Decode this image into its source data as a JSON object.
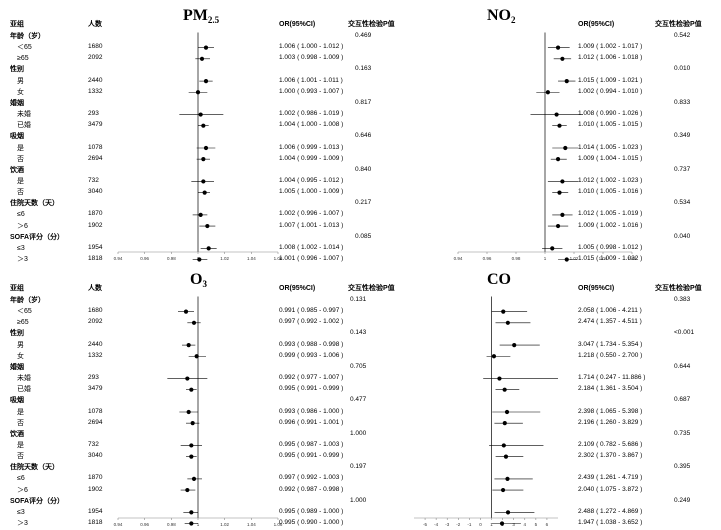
{
  "headers": {
    "subgroup": "亚组",
    "count": "人数",
    "or": "OR(95%CI)",
    "p_interaction": "交互性检验P值"
  },
  "groups": [
    {
      "name": "年龄（岁）",
      "items": [
        {
          "label": "＜65",
          "n": "1680"
        },
        {
          "label": "≥65",
          "n": "2092"
        }
      ]
    },
    {
      "name": "性别",
      "items": [
        {
          "label": "男",
          "n": "2440"
        },
        {
          "label": "女",
          "n": "1332"
        }
      ]
    },
    {
      "name": "婚姻",
      "items": [
        {
          "label": "未婚",
          "n": "293"
        },
        {
          "label": "已婚",
          "n": "3479"
        }
      ]
    },
    {
      "name": "吸烟",
      "items": [
        {
          "label": "是",
          "n": "1078"
        },
        {
          "label": "否",
          "n": "2694"
        }
      ]
    },
    {
      "name": "饮酒",
      "items": [
        {
          "label": "是",
          "n": "732"
        },
        {
          "label": "否",
          "n": "3040"
        }
      ]
    },
    {
      "name": "住院天数（天）",
      "items": [
        {
          "label": "≤6",
          "n": "1870"
        },
        {
          "label": "＞6",
          "n": "1902"
        }
      ]
    },
    {
      "name": "SOFA评分（分）",
      "items": [
        {
          "label": "≤3",
          "n": "1954"
        },
        {
          "label": "＞3",
          "n": "1818"
        }
      ]
    }
  ],
  "chart_data": [
    {
      "type": "forest",
      "title": "PM",
      "title_sub": "2.5",
      "xlim": [
        0.94,
        1.06
      ],
      "ticks": [
        "0.94",
        "0.96",
        "0.98",
        "1",
        "1.02",
        "1.04",
        "1.06"
      ],
      "reference_line": 1,
      "rows": [
        {
          "or": 1.006,
          "lo": 1.0,
          "hi": 1.012,
          "text": "1.006 ( 1.000 - 1.012 )"
        },
        {
          "or": 1.003,
          "lo": 0.998,
          "hi": 1.009,
          "text": "1.003 ( 0.998 - 1.009 )"
        },
        {
          "or": 1.006,
          "lo": 1.001,
          "hi": 1.011,
          "text": "1.006 ( 1.001 - 1.011 )"
        },
        {
          "or": 1.0,
          "lo": 0.993,
          "hi": 1.007,
          "text": "1.000 ( 0.993 - 1.007 )"
        },
        {
          "or": 1.002,
          "lo": 0.986,
          "hi": 1.019,
          "text": "1.002 ( 0.986 - 1.019 )"
        },
        {
          "or": 1.004,
          "lo": 1.0,
          "hi": 1.008,
          "text": "1.004 ( 1.000 - 1.008 )"
        },
        {
          "or": 1.006,
          "lo": 0.999,
          "hi": 1.013,
          "text": "1.006 ( 0.999 - 1.013 )"
        },
        {
          "or": 1.004,
          "lo": 0.999,
          "hi": 1.009,
          "text": "1.004 ( 0.999 - 1.009 )"
        },
        {
          "or": 1.004,
          "lo": 0.995,
          "hi": 1.012,
          "text": "1.004 ( 0.995 - 1.012 )"
        },
        {
          "or": 1.005,
          "lo": 1.0,
          "hi": 1.009,
          "text": "1.005 ( 1.000 - 1.009 )"
        },
        {
          "or": 1.002,
          "lo": 0.996,
          "hi": 1.007,
          "text": "1.002 ( 0.996 - 1.007 )"
        },
        {
          "or": 1.007,
          "lo": 1.001,
          "hi": 1.013,
          "text": "1.007 ( 1.001 - 1.013 )"
        },
        {
          "or": 1.008,
          "lo": 1.002,
          "hi": 1.014,
          "text": "1.008 ( 1.002 - 1.014 )"
        },
        {
          "or": 1.001,
          "lo": 0.996,
          "hi": 1.007,
          "text": "1.001 ( 0.996 - 1.007 )"
        }
      ],
      "p_values": [
        "0.469",
        "0.163",
        "0.817",
        "0.646",
        "0.840",
        "0.217",
        "0.085"
      ]
    },
    {
      "type": "forest",
      "title": "NO",
      "title_sub": "2",
      "xlim": [
        0.94,
        1.06
      ],
      "ticks": [
        "0.94",
        "0.96",
        "0.98",
        "1",
        "1.02",
        "1.04",
        "1.06"
      ],
      "reference_line": 1,
      "rows": [
        {
          "or": 1.009,
          "lo": 1.002,
          "hi": 1.017,
          "text": "1.009 ( 1.002 - 1.017 )"
        },
        {
          "or": 1.012,
          "lo": 1.006,
          "hi": 1.018,
          "text": "1.012 ( 1.006 - 1.018 )"
        },
        {
          "or": 1.015,
          "lo": 1.009,
          "hi": 1.021,
          "text": "1.015 ( 1.009 - 1.021 )"
        },
        {
          "or": 1.002,
          "lo": 0.994,
          "hi": 1.01,
          "text": "1.002 ( 0.994 - 1.010 )"
        },
        {
          "or": 1.008,
          "lo": 0.99,
          "hi": 1.026,
          "text": "1.008 ( 0.990 - 1.026 )"
        },
        {
          "or": 1.01,
          "lo": 1.005,
          "hi": 1.015,
          "text": "1.010 ( 1.005 - 1.015 )"
        },
        {
          "or": 1.014,
          "lo": 1.005,
          "hi": 1.023,
          "text": "1.014 ( 1.005 - 1.023 )"
        },
        {
          "or": 1.009,
          "lo": 1.004,
          "hi": 1.015,
          "text": "1.009 ( 1.004 - 1.015 )"
        },
        {
          "or": 1.012,
          "lo": 1.002,
          "hi": 1.023,
          "text": "1.012 ( 1.002 - 1.023 )"
        },
        {
          "or": 1.01,
          "lo": 1.005,
          "hi": 1.016,
          "text": "1.010 ( 1.005 - 1.016 )"
        },
        {
          "or": 1.012,
          "lo": 1.005,
          "hi": 1.019,
          "text": "1.012 ( 1.005 - 1.019 )"
        },
        {
          "or": 1.009,
          "lo": 1.002,
          "hi": 1.016,
          "text": "1.009 ( 1.002 - 1.016 )"
        },
        {
          "or": 1.005,
          "lo": 0.998,
          "hi": 1.012,
          "text": "1.005 ( 0.998 - 1.012 )"
        },
        {
          "or": 1.015,
          "lo": 1.009,
          "hi": 1.022,
          "text": "1.015 ( 1.009 - 1.022 )"
        }
      ],
      "p_values": [
        "0.542",
        "0.010",
        "0.833",
        "0.349",
        "0.737",
        "0.534",
        "0.040"
      ]
    },
    {
      "type": "forest",
      "title": "O",
      "title_sub": "3",
      "xlim": [
        0.94,
        1.06
      ],
      "ticks": [
        "0.94",
        "0.96",
        "0.98",
        "1",
        "1.02",
        "1.04",
        "1.06"
      ],
      "reference_line": 1,
      "rows": [
        {
          "or": 0.991,
          "lo": 0.985,
          "hi": 0.997,
          "text": "0.991 ( 0.985 - 0.997 )"
        },
        {
          "or": 0.997,
          "lo": 0.992,
          "hi": 1.002,
          "text": "0.997 ( 0.992 - 1.002 )"
        },
        {
          "or": 0.993,
          "lo": 0.988,
          "hi": 0.998,
          "text": "0.993 ( 0.988 - 0.998 )"
        },
        {
          "or": 0.999,
          "lo": 0.993,
          "hi": 1.006,
          "text": "0.999 ( 0.993 - 1.006 )"
        },
        {
          "or": 0.992,
          "lo": 0.977,
          "hi": 1.007,
          "text": "0.992 ( 0.977 - 1.007 )"
        },
        {
          "or": 0.995,
          "lo": 0.991,
          "hi": 0.999,
          "text": "0.995 ( 0.991 - 0.999 )"
        },
        {
          "or": 0.993,
          "lo": 0.986,
          "hi": 1.0,
          "text": "0.993 ( 0.986 - 1.000 )"
        },
        {
          "or": 0.996,
          "lo": 0.991,
          "hi": 1.001,
          "text": "0.996 ( 0.991 - 1.001 )"
        },
        {
          "or": 0.995,
          "lo": 0.987,
          "hi": 1.003,
          "text": "0.995 ( 0.987 - 1.003 )"
        },
        {
          "or": 0.995,
          "lo": 0.991,
          "hi": 0.999,
          "text": "0.995 ( 0.991 - 0.999 )"
        },
        {
          "or": 0.997,
          "lo": 0.992,
          "hi": 1.003,
          "text": "0.997 ( 0.992 - 1.003 )"
        },
        {
          "or": 0.992,
          "lo": 0.987,
          "hi": 0.998,
          "text": "0.992 ( 0.987 - 0.998 )"
        },
        {
          "or": 0.995,
          "lo": 0.989,
          "hi": 1.0,
          "text": "0.995 ( 0.989 - 1.000 )"
        },
        {
          "or": 0.995,
          "lo": 0.99,
          "hi": 1.0,
          "text": "0.995 ( 0.990 - 1.000 )"
        }
      ],
      "p_values": [
        "0.131",
        "0.143",
        "0.705",
        "0.477",
        "1.000",
        "0.197",
        "1.000"
      ]
    },
    {
      "type": "forest",
      "title": "CO",
      "title_sub": "",
      "xlim": [
        -6,
        7
      ],
      "ticks": [
        "-5",
        "-4",
        "-3",
        "-2",
        "-1",
        "0",
        "1",
        "2",
        "3",
        "4",
        "5",
        "6"
      ],
      "reference_line": 1,
      "rows": [
        {
          "or": 2.058,
          "lo": 1.006,
          "hi": 4.211,
          "text": "2.058 ( 1.006 - 4.211 )"
        },
        {
          "or": 2.474,
          "lo": 1.357,
          "hi": 4.511,
          "text": "2.474 ( 1.357 - 4.511 )"
        },
        {
          "or": 3.047,
          "lo": 1.734,
          "hi": 5.354,
          "text": "3.047 ( 1.734 - 5.354 )"
        },
        {
          "or": 1.218,
          "lo": 0.55,
          "hi": 2.7,
          "text": "1.218 ( 0.550 - 2.700 )"
        },
        {
          "or": 1.714,
          "lo": 0.247,
          "hi": 11.886,
          "text": "1.714 ( 0.247 - 11.886 )"
        },
        {
          "or": 2.184,
          "lo": 1.361,
          "hi": 3.504,
          "text": "2.184 ( 1.361 - 3.504 )"
        },
        {
          "or": 2.398,
          "lo": 1.065,
          "hi": 5.398,
          "text": "2.398 ( 1.065 - 5.398 )"
        },
        {
          "or": 2.196,
          "lo": 1.26,
          "hi": 3.829,
          "text": "2.196 ( 1.260 - 3.829 )"
        },
        {
          "or": 2.109,
          "lo": 0.782,
          "hi": 5.686,
          "text": "2.109 ( 0.782 - 5.686 )"
        },
        {
          "or": 2.302,
          "lo": 1.37,
          "hi": 3.867,
          "text": "2.302 ( 1.370 - 3.867 )"
        },
        {
          "or": 2.439,
          "lo": 1.261,
          "hi": 4.719,
          "text": "2.439 ( 1.261 - 4.719 )"
        },
        {
          "or": 2.04,
          "lo": 1.075,
          "hi": 3.872,
          "text": "2.040 ( 1.075 - 3.872 )"
        },
        {
          "or": 2.488,
          "lo": 1.272,
          "hi": 4.869,
          "text": "2.488 ( 1.272 - 4.869 )"
        },
        {
          "or": 1.947,
          "lo": 1.038,
          "hi": 3.652,
          "text": "1.947 ( 1.038 - 3.652 )"
        }
      ],
      "p_values": [
        "0.383",
        "<0.001",
        "0.644",
        "0.687",
        "0.735",
        "0.395",
        "0.249"
      ]
    }
  ]
}
